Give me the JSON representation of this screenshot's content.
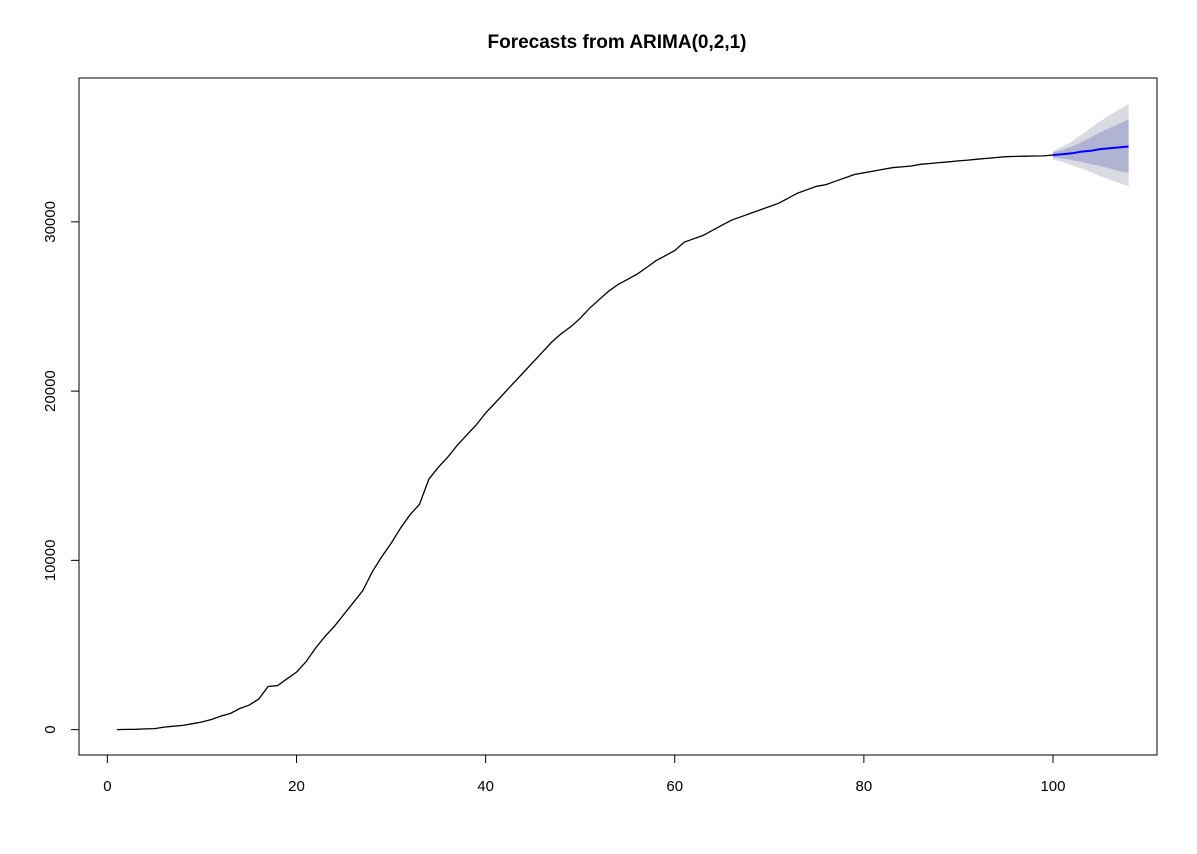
{
  "chart_data": {
    "type": "line",
    "title": "Forecasts from ARIMA(0,2,1)",
    "xlabel": "",
    "ylabel": "",
    "xlim": [
      -3,
      111
    ],
    "ylim": [
      -1500,
      38500
    ],
    "x_ticks": [
      0,
      20,
      40,
      60,
      80,
      100
    ],
    "y_ticks": [
      0,
      10000,
      20000,
      30000
    ],
    "grid": false,
    "legend": "none",
    "colors": {
      "history": "#000000",
      "forecast": "#0000ff",
      "band80": "#b0b4d2",
      "band95": "#dadae2"
    },
    "history": {
      "x": [
        1,
        2,
        3,
        4,
        5,
        6,
        7,
        8,
        9,
        10,
        11,
        12,
        13,
        14,
        15,
        16,
        17,
        18,
        19,
        20,
        21,
        22,
        23,
        24,
        25,
        26,
        27,
        28,
        29,
        30,
        31,
        32,
        33,
        34,
        35,
        36,
        37,
        38,
        39,
        40,
        41,
        42,
        43,
        44,
        45,
        46,
        47,
        48,
        49,
        50,
        51,
        52,
        53,
        54,
        55,
        56,
        57,
        58,
        59,
        60,
        61,
        62,
        63,
        64,
        65,
        66,
        67,
        68,
        69,
        70,
        71,
        72,
        73,
        74,
        75,
        76,
        77,
        78,
        79,
        80,
        81,
        82,
        83,
        84,
        85,
        86,
        87,
        88,
        89,
        90,
        91,
        92,
        93,
        94,
        95,
        96,
        97,
        98,
        99,
        100
      ],
      "y": [
        0,
        10,
        20,
        40,
        60,
        150,
        200,
        250,
        350,
        450,
        600,
        800,
        950,
        1250,
        1450,
        1800,
        2550,
        2600,
        3000,
        3400,
        4000,
        4800,
        5500,
        6100,
        6800,
        7500,
        8200,
        9300,
        10200,
        11000,
        11900,
        12700,
        13300,
        14800,
        15500,
        16100,
        16800,
        17400,
        18000,
        18700,
        19300,
        19900,
        20500,
        21100,
        21700,
        22300,
        22900,
        23400,
        23800,
        24300,
        24900,
        25400,
        25900,
        26300,
        26600,
        26900,
        27300,
        27700,
        28000,
        28300,
        28800,
        29000,
        29200,
        29500,
        29800,
        30100,
        30300,
        30500,
        30700,
        30900,
        31100,
        31400,
        31700,
        31900,
        32100,
        32200,
        32400,
        32600,
        32800,
        32900,
        33000,
        33100,
        33200,
        33250,
        33300,
        33400,
        33450,
        33500,
        33550,
        33600,
        33650,
        33700,
        33750,
        33800,
        33850,
        33870,
        33880,
        33890,
        33900,
        33950
      ]
    },
    "forecast": {
      "x": [
        100,
        101,
        102,
        103,
        104,
        105,
        106,
        107,
        108
      ],
      "mean": [
        33950,
        34000,
        34050,
        34150,
        34200,
        34300,
        34350,
        34400,
        34450
      ],
      "lo80": [
        33800,
        33750,
        33650,
        33550,
        33400,
        33300,
        33150,
        33000,
        32900
      ],
      "hi80": [
        34100,
        34250,
        34450,
        34700,
        35000,
        35300,
        35550,
        35800,
        36050
      ],
      "lo95": [
        33700,
        33550,
        33350,
        33150,
        32950,
        32700,
        32500,
        32300,
        32100
      ],
      "hi95": [
        34200,
        34450,
        34750,
        35150,
        35550,
        35950,
        36300,
        36650,
        36950
      ]
    }
  }
}
